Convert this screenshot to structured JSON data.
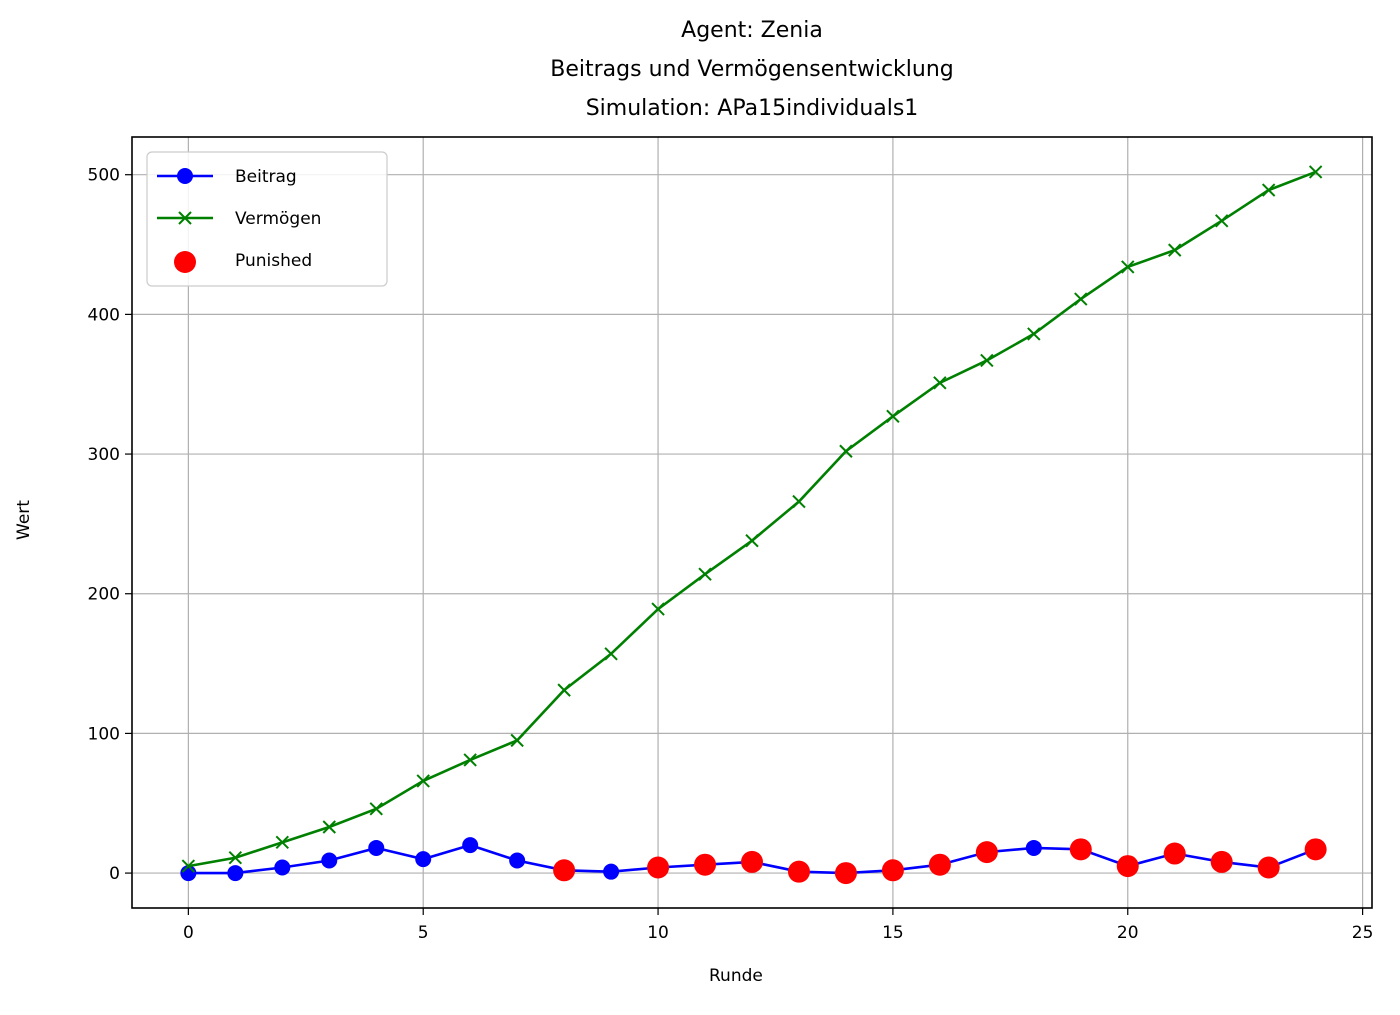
{
  "chart_data": {
    "type": "line",
    "title_lines": [
      "Agent: Zenia",
      "Beitrags und Vermögensentwicklung",
      "Simulation: APa15individuals1"
    ],
    "xlabel": "Runde",
    "ylabel": "Wert",
    "xlim": [
      -1.2,
      25.2
    ],
    "ylim": [
      -25,
      527
    ],
    "xticks": [
      0,
      5,
      10,
      15,
      20,
      25
    ],
    "yticks": [
      0,
      100,
      200,
      300,
      400,
      500
    ],
    "grid": true,
    "legend_position": "top-left",
    "x": [
      0,
      1,
      2,
      3,
      4,
      5,
      6,
      7,
      8,
      9,
      10,
      11,
      12,
      13,
      14,
      15,
      16,
      17,
      18,
      19,
      20,
      21,
      22,
      23,
      24
    ],
    "series": [
      {
        "name": "Beitrag",
        "color": "#0000ff",
        "marker": "circle",
        "values": [
          0,
          0,
          4,
          9,
          18,
          10,
          20,
          9,
          2,
          1,
          4,
          6,
          8,
          1,
          0,
          2,
          6,
          15,
          18,
          17,
          5,
          14,
          8,
          4,
          17
        ]
      },
      {
        "name": "Vermögen",
        "color": "#008000",
        "marker": "x",
        "values": [
          5,
          11,
          22,
          33,
          46,
          66,
          81,
          95,
          131,
          157,
          189,
          214,
          238,
          266,
          302,
          327,
          351,
          367,
          386,
          411,
          434,
          446,
          467,
          489,
          502
        ]
      }
    ],
    "punished": {
      "name": "Punished",
      "color": "#ff0000",
      "marker": "large-circle",
      "points": [
        {
          "x": 8,
          "y": 2
        },
        {
          "x": 10,
          "y": 4
        },
        {
          "x": 11,
          "y": 6
        },
        {
          "x": 12,
          "y": 8
        },
        {
          "x": 13,
          "y": 1
        },
        {
          "x": 14,
          "y": 0
        },
        {
          "x": 15,
          "y": 2
        },
        {
          "x": 16,
          "y": 6
        },
        {
          "x": 17,
          "y": 15
        },
        {
          "x": 19,
          "y": 17
        },
        {
          "x": 20,
          "y": 5
        },
        {
          "x": 21,
          "y": 14
        },
        {
          "x": 22,
          "y": 8
        },
        {
          "x": 23,
          "y": 4
        },
        {
          "x": 24,
          "y": 17
        }
      ]
    }
  }
}
